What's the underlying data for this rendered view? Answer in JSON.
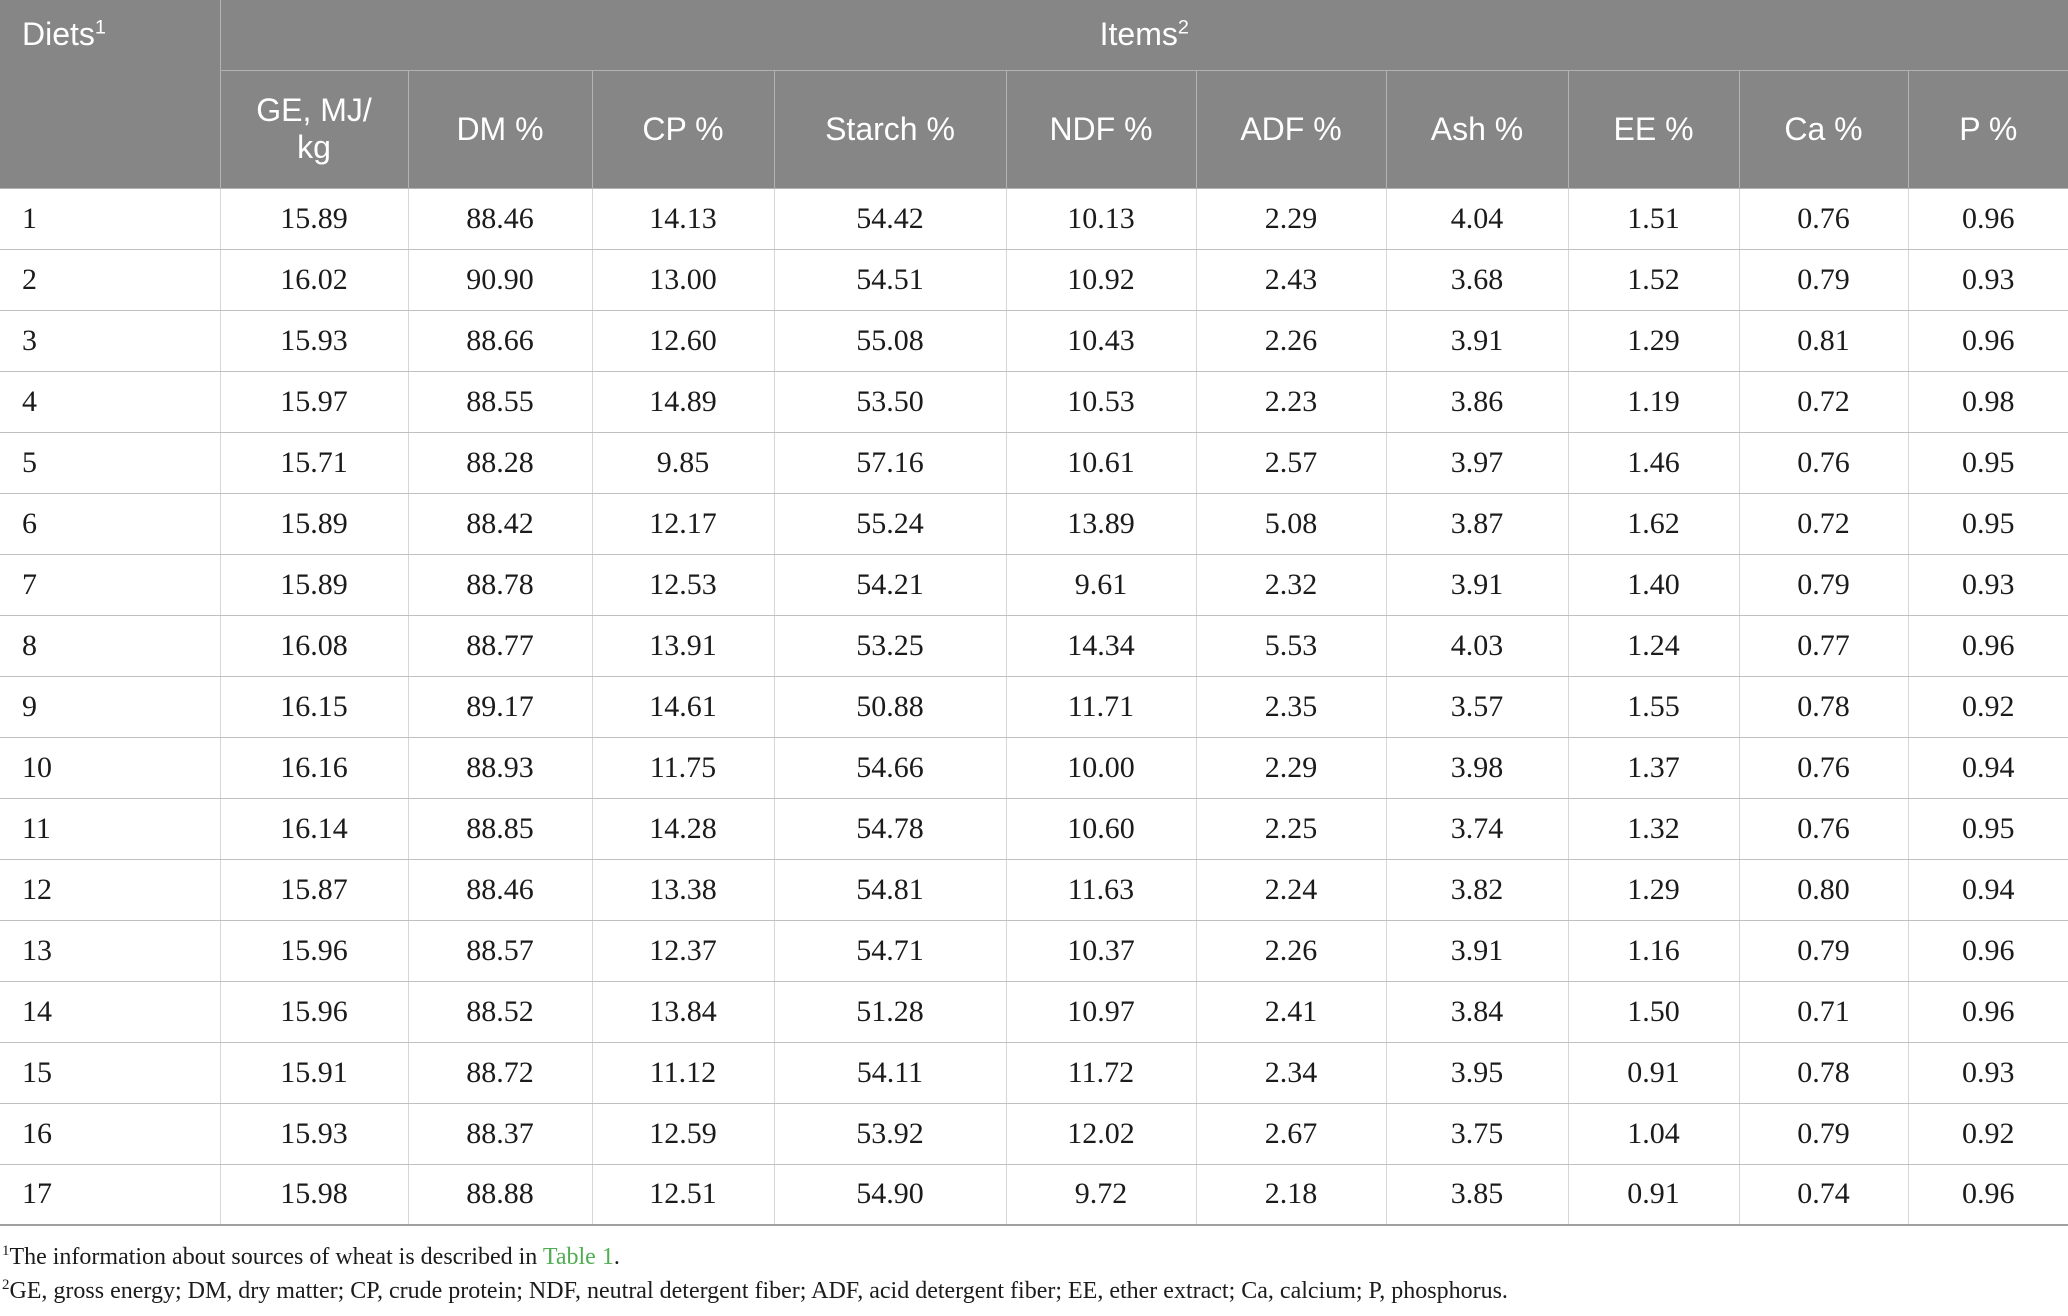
{
  "table": {
    "corner": {
      "label": "Diets",
      "sup": "1"
    },
    "group": {
      "label": "Items",
      "sup": "2"
    },
    "columns": [
      "GE, MJ/\nkg",
      "DM %",
      "CP %",
      "Starch %",
      "NDF %",
      "ADF %",
      "Ash %",
      "EE %",
      "Ca %",
      "P %"
    ],
    "rows": [
      {
        "diet": "1",
        "values": [
          "15.89",
          "88.46",
          "14.13",
          "54.42",
          "10.13",
          "2.29",
          "4.04",
          "1.51",
          "0.76",
          "0.96"
        ]
      },
      {
        "diet": "2",
        "values": [
          "16.02",
          "90.90",
          "13.00",
          "54.51",
          "10.92",
          "2.43",
          "3.68",
          "1.52",
          "0.79",
          "0.93"
        ]
      },
      {
        "diet": "3",
        "values": [
          "15.93",
          "88.66",
          "12.60",
          "55.08",
          "10.43",
          "2.26",
          "3.91",
          "1.29",
          "0.81",
          "0.96"
        ]
      },
      {
        "diet": "4",
        "values": [
          "15.97",
          "88.55",
          "14.89",
          "53.50",
          "10.53",
          "2.23",
          "3.86",
          "1.19",
          "0.72",
          "0.98"
        ]
      },
      {
        "diet": "5",
        "values": [
          "15.71",
          "88.28",
          "9.85",
          "57.16",
          "10.61",
          "2.57",
          "3.97",
          "1.46",
          "0.76",
          "0.95"
        ]
      },
      {
        "diet": "6",
        "values": [
          "15.89",
          "88.42",
          "12.17",
          "55.24",
          "13.89",
          "5.08",
          "3.87",
          "1.62",
          "0.72",
          "0.95"
        ]
      },
      {
        "diet": "7",
        "values": [
          "15.89",
          "88.78",
          "12.53",
          "54.21",
          "9.61",
          "2.32",
          "3.91",
          "1.40",
          "0.79",
          "0.93"
        ]
      },
      {
        "diet": "8",
        "values": [
          "16.08",
          "88.77",
          "13.91",
          "53.25",
          "14.34",
          "5.53",
          "4.03",
          "1.24",
          "0.77",
          "0.96"
        ]
      },
      {
        "diet": "9",
        "values": [
          "16.15",
          "89.17",
          "14.61",
          "50.88",
          "11.71",
          "2.35",
          "3.57",
          "1.55",
          "0.78",
          "0.92"
        ]
      },
      {
        "diet": "10",
        "values": [
          "16.16",
          "88.93",
          "11.75",
          "54.66",
          "10.00",
          "2.29",
          "3.98",
          "1.37",
          "0.76",
          "0.94"
        ]
      },
      {
        "diet": "11",
        "values": [
          "16.14",
          "88.85",
          "14.28",
          "54.78",
          "10.60",
          "2.25",
          "3.74",
          "1.32",
          "0.76",
          "0.95"
        ]
      },
      {
        "diet": "12",
        "values": [
          "15.87",
          "88.46",
          "13.38",
          "54.81",
          "11.63",
          "2.24",
          "3.82",
          "1.29",
          "0.80",
          "0.94"
        ]
      },
      {
        "diet": "13",
        "values": [
          "15.96",
          "88.57",
          "12.37",
          "54.71",
          "10.37",
          "2.26",
          "3.91",
          "1.16",
          "0.79",
          "0.96"
        ]
      },
      {
        "diet": "14",
        "values": [
          "15.96",
          "88.52",
          "13.84",
          "51.28",
          "10.97",
          "2.41",
          "3.84",
          "1.50",
          "0.71",
          "0.96"
        ]
      },
      {
        "diet": "15",
        "values": [
          "15.91",
          "88.72",
          "11.12",
          "54.11",
          "11.72",
          "2.34",
          "3.95",
          "0.91",
          "0.78",
          "0.93"
        ]
      },
      {
        "diet": "16",
        "values": [
          "15.93",
          "88.37",
          "12.59",
          "53.92",
          "12.02",
          "2.67",
          "3.75",
          "1.04",
          "0.79",
          "0.92"
        ]
      },
      {
        "diet": "17",
        "values": [
          "15.98",
          "88.88",
          "12.51",
          "54.90",
          "9.72",
          "2.18",
          "3.85",
          "0.91",
          "0.74",
          "0.96"
        ]
      }
    ]
  },
  "footnotes": {
    "note1": {
      "marker": "1",
      "text_before_link": "The information about sources of wheat is described in ",
      "link": "Table 1",
      "text_after_link": "."
    },
    "note2": {
      "marker": "2",
      "text": "GE, gross energy; DM, dry matter; CP, crude protein; NDF, neutral detergent fiber; ADF, acid detergent fiber; EE, ether extract; Ca, calcium; P, phosphorus."
    }
  },
  "colors": {
    "header_bg": "#868686",
    "header_text": "#ffffff",
    "link_green": "#4fae52",
    "row_border": "#bfbfbf",
    "column_border": "#d6d6d6"
  }
}
